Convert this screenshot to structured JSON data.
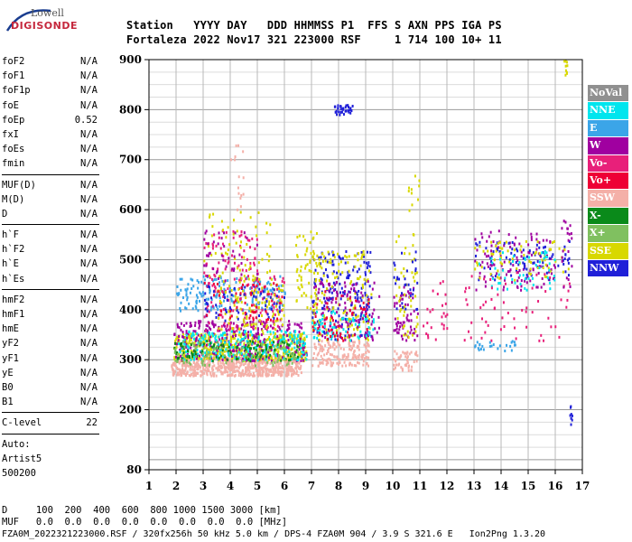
{
  "logo": {
    "top": "Lowell",
    "bottom": "DIGISONDE"
  },
  "header": {
    "line1": "Station   YYYY DAY   DDD HHMMSS P1  FFS S AXN PPS IGA PS",
    "line2": "Fortaleza 2022 Nov17 321 223000 RSF     1 714 100 10+ 11"
  },
  "params_group1": [
    {
      "name": "foF2",
      "value": "N/A"
    },
    {
      "name": "foF1",
      "value": "N/A"
    },
    {
      "name": "foF1p",
      "value": "N/A"
    },
    {
      "name": "foE",
      "value": "N/A"
    },
    {
      "name": "foEp",
      "value": "0.52"
    },
    {
      "name": "fxI",
      "value": "N/A"
    },
    {
      "name": "foEs",
      "value": "N/A"
    },
    {
      "name": "fmin",
      "value": "N/A"
    }
  ],
  "params_group2": [
    {
      "name": "MUF(D)",
      "value": "N/A"
    },
    {
      "name": "M(D)",
      "value": "N/A"
    },
    {
      "name": "D",
      "value": "N/A"
    }
  ],
  "params_group3": [
    {
      "name": "h`F",
      "value": "N/A"
    },
    {
      "name": "h`F2",
      "value": "N/A"
    },
    {
      "name": "h`E",
      "value": "N/A"
    },
    {
      "name": "h`Es",
      "value": "N/A"
    }
  ],
  "params_group4": [
    {
      "name": "hmF2",
      "value": "N/A"
    },
    {
      "name": "hmF1",
      "value": "N/A"
    },
    {
      "name": "hmE",
      "value": "N/A"
    },
    {
      "name": "yF2",
      "value": "N/A"
    },
    {
      "name": "yF1",
      "value": "N/A"
    },
    {
      "name": "yE",
      "value": "N/A"
    },
    {
      "name": "B0",
      "value": "N/A"
    },
    {
      "name": "B1",
      "value": "N/A"
    }
  ],
  "clevel": {
    "name": "C-level",
    "value": "22"
  },
  "auto": {
    "l1": "Auto:",
    "l2": "Artist5",
    "l3": "500200"
  },
  "legend": [
    {
      "label": "NoVal",
      "color": "#909090"
    },
    {
      "label": "NNE",
      "color": "#00e5ee"
    },
    {
      "label": "E",
      "color": "#3ba5e8"
    },
    {
      "label": "W",
      "color": "#a000a0"
    },
    {
      "label": "Vo-",
      "color": "#e8207a"
    },
    {
      "label": "Vo+",
      "color": "#ee0035"
    },
    {
      "label": "SSW",
      "color": "#f4b0a8"
    },
    {
      "label": "X-",
      "color": "#0a8a1a"
    },
    {
      "label": "X+",
      "color": "#80c060"
    },
    {
      "label": "SSE",
      "color": "#d8d800"
    },
    {
      "label": "NNW",
      "color": "#2020d8"
    }
  ],
  "footer": {
    "d_line": "D     100  200  400  600  800 1000 1500 3000 [km]",
    "muf_line": "MUF   0.0  0.0  0.0  0.0  0.0  0.0  0.0  0.0 [MHz]",
    "file_line": "FZA0M_2022321223000.RSF / 320fx256h 50 kHz 5.0 km / DPS-4 FZA0M 904 / 3.9 S 321.6 E   Ion2Png 1.3.20"
  },
  "chart_data": {
    "type": "scatter",
    "xlim": [
      1,
      17
    ],
    "ylim": [
      80,
      900
    ],
    "x_ticks": [
      1,
      2,
      3,
      4,
      5,
      6,
      7,
      8,
      9,
      10,
      11,
      12,
      13,
      14,
      15,
      16,
      17
    ],
    "y_ticks": [
      80,
      200,
      300,
      400,
      500,
      600,
      700,
      800,
      900
    ],
    "grid": true,
    "clusters": [
      {
        "color": "#f4b0a8",
        "x": [
          1.8,
          6.6
        ],
        "y": [
          270,
          310
        ],
        "n": 700
      },
      {
        "color": "#f4b0a8",
        "x": [
          7.0,
          9.1
        ],
        "y": [
          290,
          340
        ],
        "n": 160
      },
      {
        "color": "#f4b0a8",
        "x": [
          10.0,
          10.9
        ],
        "y": [
          280,
          320
        ],
        "n": 50
      },
      {
        "color": "#d8d800",
        "x": [
          1.9,
          6.8
        ],
        "y": [
          300,
          355
        ],
        "n": 450
      },
      {
        "color": "#a000a0",
        "x": [
          1.9,
          6.8
        ],
        "y": [
          300,
          380
        ],
        "n": 300
      },
      {
        "color": "#00e5ee",
        "x": [
          2.0,
          6.8
        ],
        "y": [
          300,
          360
        ],
        "n": 220
      },
      {
        "color": "#0a8a1a",
        "x": [
          1.9,
          6.5
        ],
        "y": [
          300,
          340
        ],
        "n": 120
      },
      {
        "color": "#80c060",
        "x": [
          1.9,
          6.5
        ],
        "y": [
          290,
          340
        ],
        "n": 100
      },
      {
        "color": "#3ba5e8",
        "x": [
          2.0,
          6.0
        ],
        "y": [
          400,
          470
        ],
        "n": 180
      },
      {
        "color": "#e8207a",
        "x": [
          3.0,
          6.0
        ],
        "y": [
          360,
          470
        ],
        "n": 120
      },
      {
        "color": "#d8d800",
        "x": [
          3.5,
          6.0
        ],
        "y": [
          360,
          470
        ],
        "n": 120
      },
      {
        "color": "#2020d8",
        "x": [
          3.0,
          6.0
        ],
        "y": [
          380,
          450
        ],
        "n": 60
      },
      {
        "color": "#ee0035",
        "x": [
          3.0,
          6.0
        ],
        "y": [
          380,
          460
        ],
        "n": 50
      },
      {
        "color": "#e8207a",
        "x": [
          3.0,
          5.0
        ],
        "y": [
          470,
          560
        ],
        "n": 60
      },
      {
        "color": "#d8d800",
        "x": [
          3.0,
          5.5
        ],
        "y": [
          470,
          600
        ],
        "n": 50
      },
      {
        "color": "#a000a0",
        "x": [
          3.0,
          5.0
        ],
        "y": [
          460,
          560
        ],
        "n": 40
      },
      {
        "color": "#2020d8",
        "x": [
          7.0,
          9.2
        ],
        "y": [
          340,
          520
        ],
        "n": 180
      },
      {
        "color": "#d8d800",
        "x": [
          7.0,
          9.2
        ],
        "y": [
          340,
          520
        ],
        "n": 140
      },
      {
        "color": "#a000a0",
        "x": [
          7.0,
          9.5
        ],
        "y": [
          340,
          460
        ],
        "n": 120
      },
      {
        "color": "#00e5ee",
        "x": [
          7.0,
          9.3
        ],
        "y": [
          340,
          400
        ],
        "n": 60
      },
      {
        "color": "#ee0035",
        "x": [
          7.0,
          9.2
        ],
        "y": [
          340,
          440
        ],
        "n": 50
      },
      {
        "color": "#d8d800",
        "x": [
          6.4,
          7.2
        ],
        "y": [
          400,
          560
        ],
        "n": 60
      },
      {
        "color": "#a000a0",
        "x": [
          10.0,
          10.9
        ],
        "y": [
          340,
          450
        ],
        "n": 60
      },
      {
        "color": "#d8d800",
        "x": [
          10.0,
          10.9
        ],
        "y": [
          340,
          560
        ],
        "n": 50
      },
      {
        "color": "#2020d8",
        "x": [
          10.0,
          10.9
        ],
        "y": [
          400,
          520
        ],
        "n": 30
      },
      {
        "color": "#e8207a",
        "x": [
          11.0,
          12.0
        ],
        "y": [
          340,
          460
        ],
        "n": 25
      },
      {
        "color": "#a000a0",
        "x": [
          13.0,
          16.0
        ],
        "y": [
          440,
          560
        ],
        "n": 120
      },
      {
        "color": "#2020d8",
        "x": [
          13.0,
          16.5
        ],
        "y": [
          460,
          540
        ],
        "n": 80
      },
      {
        "color": "#d8d800",
        "x": [
          13.0,
          16.5
        ],
        "y": [
          460,
          540
        ],
        "n": 70
      },
      {
        "color": "#00e5ee",
        "x": [
          13.0,
          16.0
        ],
        "y": [
          440,
          520
        ],
        "n": 50
      },
      {
        "color": "#e8207a",
        "x": [
          12.5,
          16.5
        ],
        "y": [
          340,
          480
        ],
        "n": 60
      },
      {
        "color": "#3ba5e8",
        "x": [
          13.0,
          14.5
        ],
        "y": [
          320,
          340
        ],
        "n": 25
      },
      {
        "color": "#a000a0",
        "x": [
          16.2,
          16.7
        ],
        "y": [
          440,
          580
        ],
        "n": 20
      },
      {
        "color": "#2020d8",
        "x": [
          7.8,
          8.5
        ],
        "y": [
          790,
          812
        ],
        "n": 35
      },
      {
        "color": "#2020d8",
        "x": [
          16.5,
          16.6
        ],
        "y": [
          165,
          210
        ],
        "n": 8
      },
      {
        "color": "#d8d800",
        "x": [
          16.3,
          16.5
        ],
        "y": [
          860,
          900
        ],
        "n": 10
      },
      {
        "color": "#f4b0a8",
        "x": [
          4.0,
          4.5
        ],
        "y": [
          600,
          740
        ],
        "n": 15
      },
      {
        "color": "#d8d800",
        "x": [
          10.5,
          11.0
        ],
        "y": [
          600,
          670
        ],
        "n": 10
      }
    ]
  }
}
